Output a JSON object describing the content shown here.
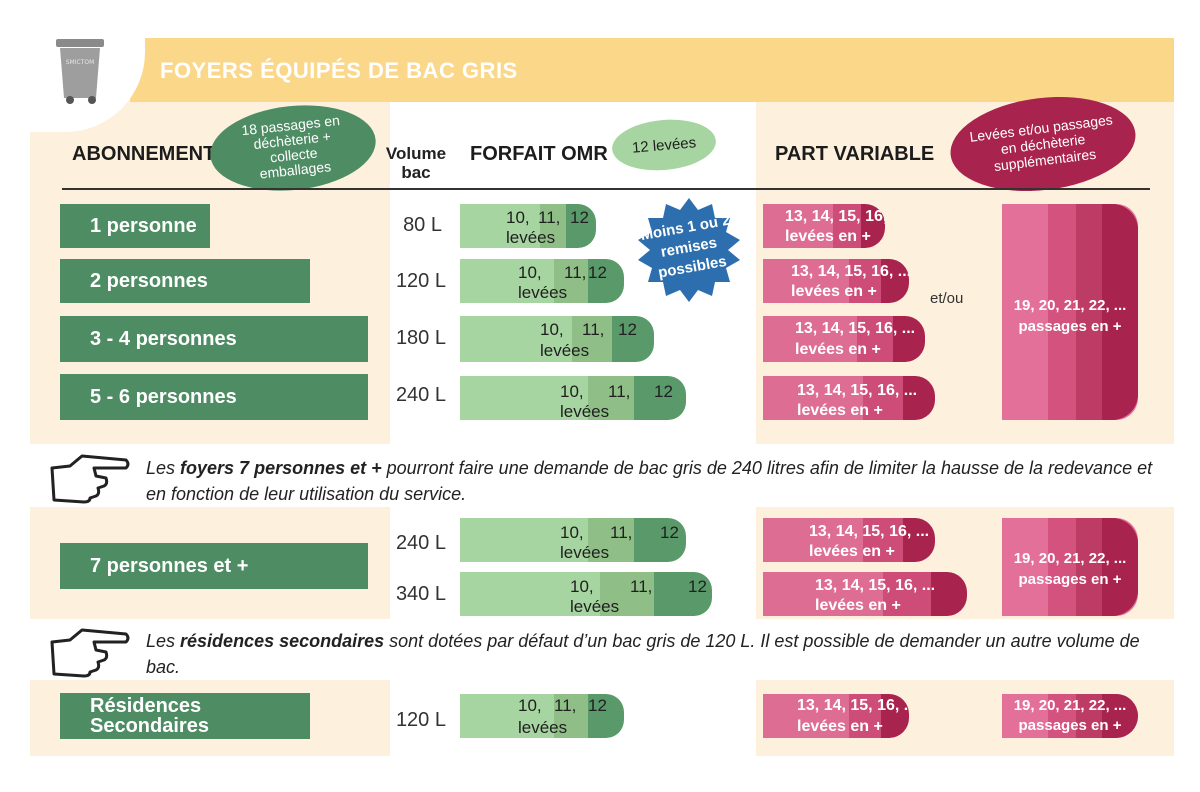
{
  "title": "FOYERS ÉQUIPÉS DE BAC GRIS",
  "bin_logo": "SMICTOM",
  "headers": {
    "abonnement": "ABONNEMENT",
    "abonnement_badge": "18 passages en déchèterie + collecte emballages",
    "volume": "Volume bac",
    "forfait": "FORFAIT OMR",
    "forfait_badge": "12 levées",
    "part_variable": "PART VARIABLE",
    "pv_badge": "Levées et/ou passages en déchèterie supplémentaires"
  },
  "starburst": "Moins 1 ou 2 remises possibles",
  "et_ou": "et/ou",
  "rows": [
    {
      "label": "1 personne",
      "volume": "80 L"
    },
    {
      "label": "2 personnes",
      "volume": "120 L"
    },
    {
      "label": "3 - 4 personnes",
      "volume": "180 L"
    },
    {
      "label": "5 - 6 personnes",
      "volume": "240 L"
    }
  ],
  "omr": {
    "a": "10,",
    "b": "11,",
    "c": "12",
    "unit": "levées"
  },
  "pv": {
    "compact": "13, 14, 15, 16, ...",
    "spaced": "13,  14,  15,  16, ...",
    "unit": "levées en +"
  },
  "big": {
    "line1": "19, 20, 21, 22, ...",
    "line2": "passages en +"
  },
  "note1": {
    "pre": "Les ",
    "bold": "foyers 7 personnes et +",
    "post": " pourront faire une demande de bac gris de 240 litres afin de limiter la hausse de la redevance et en fonction de leur utilisation du service."
  },
  "row7": {
    "label": "7 personnes et +",
    "volume_a": "240 L",
    "volume_b": "340 L"
  },
  "note2": {
    "pre": "Les ",
    "bold": "résidences secondaires",
    "post": " sont dotées par défaut d’un bac gris de 120 L. Il est possible de demander un autre volume de bac."
  },
  "rs": {
    "label_1": "Résidences",
    "label_2": "Secondaires",
    "volume": "120 L"
  },
  "colors": {
    "green_dark": "#4e8c64",
    "green_light": "#a7d5a1",
    "pink": "#de6d93",
    "maroon": "#a8234d",
    "yellow": "#fbd78a",
    "cream": "#fdf1dd",
    "blue": "#2d6fae"
  }
}
